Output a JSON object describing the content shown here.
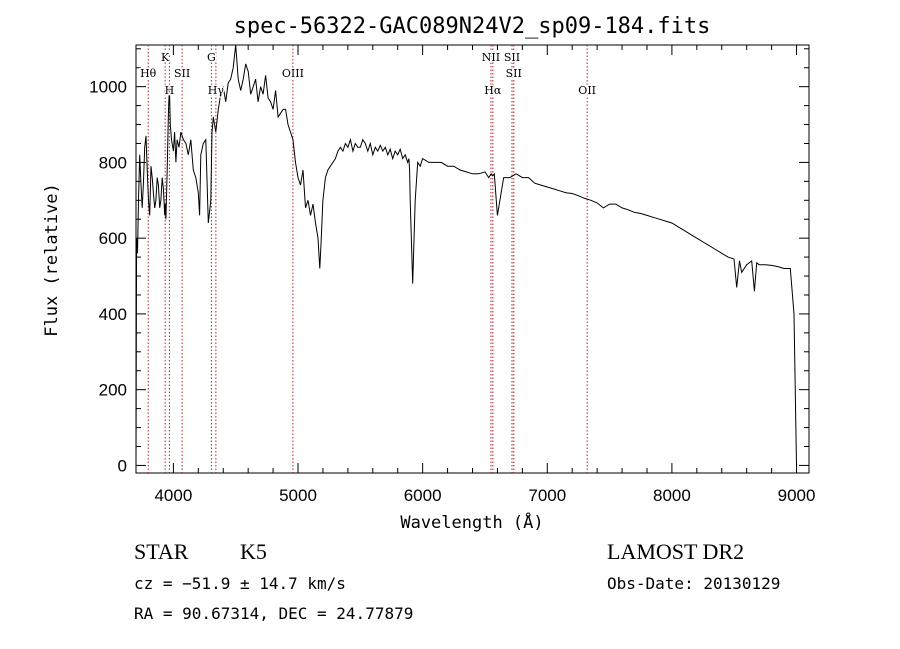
{
  "chart_data": {
    "type": "line",
    "title": "spec-56322-GAC089N24V2_sp09-184.fits",
    "xlabel": "Wavelength (Å)",
    "ylabel": "Flux (relative)",
    "xlim": [
      3700,
      9100
    ],
    "ylim": [
      -20,
      1110
    ],
    "x_ticks": [
      4000,
      5000,
      6000,
      7000,
      8000,
      9000
    ],
    "y_ticks": [
      0,
      200,
      400,
      600,
      800,
      1000
    ],
    "grid": false,
    "line_color": "#000000",
    "marker_color": "#b22222",
    "spectral_lines": [
      {
        "label": "Hθ",
        "wavelength": 3798,
        "row": 2
      },
      {
        "label": "K",
        "wavelength": 3934,
        "row": 1
      },
      {
        "label": "H",
        "wavelength": 3968,
        "row": 3
      },
      {
        "label": "SII",
        "wavelength": 4070,
        "row": 2
      },
      {
        "label": "G",
        "wavelength": 4305,
        "row": 1
      },
      {
        "label": "Hγ",
        "wavelength": 4341,
        "row": 3
      },
      {
        "label": "OIII",
        "wavelength": 4959,
        "row": 2
      },
      {
        "label": "NII",
        "wavelength": 6548,
        "row": 1
      },
      {
        "label": "Hα",
        "wavelength": 6563,
        "row": 3
      },
      {
        "label": "SII",
        "wavelength": 6717,
        "row": 1
      },
      {
        "label": "SII",
        "wavelength": 6731,
        "row": 2
      },
      {
        "label": "OII",
        "wavelength": 7320,
        "row": 3
      }
    ],
    "series": [
      {
        "x": [
          3700,
          3705,
          3712,
          3720,
          3730,
          3740,
          3750,
          3760,
          3770,
          3780,
          3790,
          3800,
          3810,
          3820,
          3830,
          3840,
          3850,
          3860,
          3870,
          3880,
          3890,
          3900,
          3910,
          3920,
          3930,
          3935,
          3940,
          3950,
          3960,
          3968,
          3975,
          3985,
          4000,
          4010,
          4020,
          4030,
          4045,
          4060,
          4080,
          4100,
          4120,
          4140,
          4160,
          4180,
          4200,
          4210,
          4220,
          4240,
          4260,
          4280,
          4300,
          4310,
          4320,
          4340,
          4360,
          4380,
          4400,
          4420,
          4440,
          4460,
          4480,
          4500,
          4520,
          4540,
          4560,
          4580,
          4600,
          4620,
          4640,
          4660,
          4680,
          4700,
          4720,
          4740,
          4760,
          4780,
          4800,
          4820,
          4840,
          4860,
          4880,
          4900,
          4920,
          4940,
          4960,
          4980,
          5000,
          5020,
          5040,
          5060,
          5080,
          5100,
          5120,
          5140,
          5160,
          5175,
          5185,
          5200,
          5220,
          5240,
          5260,
          5280,
          5300,
          5320,
          5340,
          5360,
          5380,
          5400,
          5420,
          5440,
          5460,
          5480,
          5500,
          5520,
          5540,
          5560,
          5580,
          5600,
          5620,
          5640,
          5660,
          5680,
          5700,
          5720,
          5740,
          5760,
          5780,
          5800,
          5820,
          5840,
          5860,
          5880,
          5890,
          5895,
          5900,
          5920,
          5940,
          5960,
          5980,
          6000,
          6050,
          6100,
          6150,
          6200,
          6250,
          6300,
          6350,
          6400,
          6450,
          6500,
          6530,
          6550,
          6563,
          6575,
          6600,
          6650,
          6700,
          6750,
          6800,
          6850,
          6900,
          6950,
          7000,
          7050,
          7100,
          7150,
          7200,
          7250,
          7300,
          7350,
          7400,
          7450,
          7500,
          7550,
          7600,
          7650,
          7700,
          7750,
          7800,
          7850,
          7900,
          7950,
          8000,
          8050,
          8100,
          8150,
          8200,
          8250,
          8300,
          8350,
          8400,
          8450,
          8498,
          8520,
          8542,
          8560,
          8600,
          8640,
          8662,
          8680,
          8700,
          8750,
          8800,
          8850,
          8900,
          8950,
          8980,
          9000
        ],
        "y": [
          0,
          600,
          560,
          700,
          820,
          740,
          680,
          750,
          840,
          870,
          780,
          700,
          660,
          790,
          760,
          720,
          680,
          700,
          760,
          740,
          680,
          700,
          760,
          730,
          660,
          690,
          650,
          780,
          930,
          1000,
          900,
          860,
          830,
          880,
          800,
          860,
          840,
          880,
          860,
          850,
          820,
          860,
          780,
          760,
          720,
          660,
          820,
          850,
          860,
          640,
          700,
          880,
          920,
          880,
          940,
          980,
          1000,
          960,
          1010,
          1020,
          1050,
          1110,
          1020,
          990,
          1020,
          1060,
          1040,
          980,
          1000,
          1020,
          960,
          1000,
          980,
          1030,
          970,
          960,
          940,
          990,
          920,
          930,
          940,
          940,
          900,
          880,
          860,
          800,
          760,
          740,
          780,
          680,
          700,
          660,
          690,
          640,
          600,
          520,
          590,
          700,
          760,
          780,
          790,
          800,
          810,
          830,
          840,
          830,
          850,
          840,
          860,
          830,
          850,
          840,
          840,
          860,
          850,
          830,
          850,
          820,
          840,
          830,
          845,
          830,
          840,
          820,
          835,
          810,
          830,
          820,
          835,
          810,
          820,
          800,
          810,
          780,
          700,
          480,
          700,
          800,
          790,
          810,
          800,
          800,
          800,
          790,
          790,
          780,
          775,
          770,
          770,
          775,
          760,
          770,
          765,
          770,
          660,
          760,
          760,
          770,
          760,
          760,
          745,
          740,
          735,
          730,
          725,
          720,
          718,
          712,
          705,
          700,
          693,
          680,
          690,
          690,
          680,
          675,
          668,
          665,
          660,
          655,
          650,
          645,
          640,
          630,
          620,
          610,
          600,
          590,
          580,
          570,
          560,
          550,
          545,
          470,
          540,
          510,
          530,
          540,
          460,
          535,
          530,
          530,
          528,
          525,
          520,
          520,
          400,
          0
        ]
      }
    ],
    "annotations": {
      "object_class": "STAR",
      "subclass": "K5",
      "survey": "LAMOST DR2",
      "cz": "cz = −51.9 ± 14.7 km/s",
      "obs_date": "Obs-Date: 20130129",
      "coords": "RA =  90.67314, DEC =  24.77879"
    }
  }
}
